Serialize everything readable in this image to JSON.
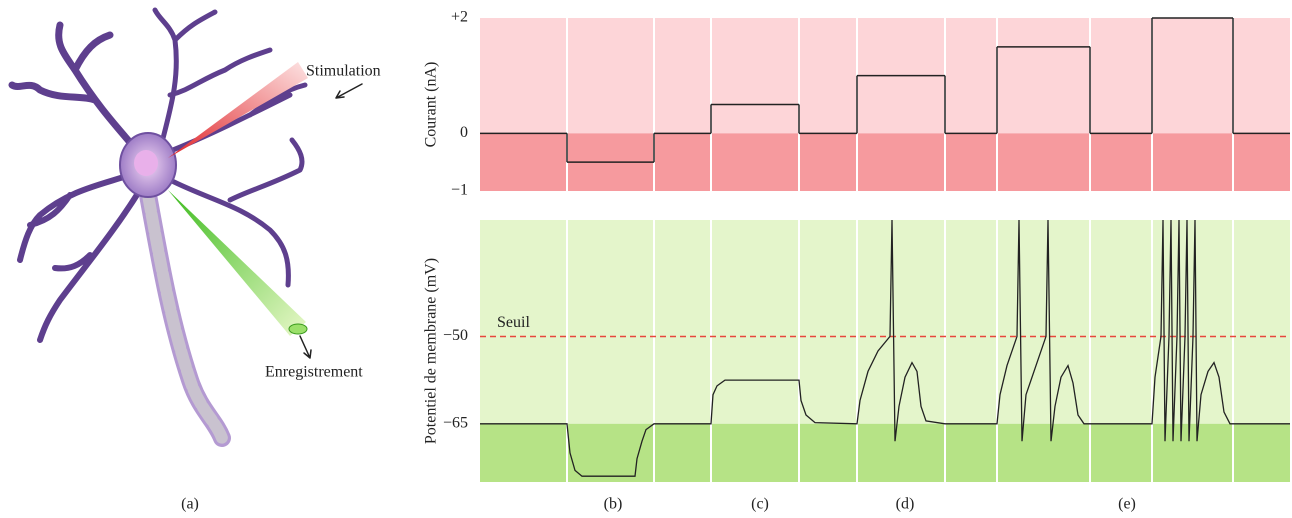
{
  "chart_data": [
    {
      "type": "step",
      "y_label": "Courant (nA)",
      "x": [
        0,
        87,
        174,
        231,
        319,
        377,
        465,
        517,
        610,
        672,
        753,
        810
      ],
      "values": [
        0,
        -0.5,
        0,
        0.5,
        0,
        1,
        0,
        1.5,
        0,
        2,
        0,
        0
      ],
      "xlim": [
        0,
        810
      ],
      "ylim": [
        -1,
        2
      ],
      "yticks": [
        {
          "value": 2,
          "label": "+2"
        },
        0,
        {
          "value": -1,
          "label": "−1"
        }
      ],
      "color": "#222222",
      "background_colors": [
        "#fdd5d8",
        "#f69a9e"
      ]
    },
    {
      "type": "line",
      "y_label": "Potentiel de membrane (mV)",
      "x": [
        0,
        87,
        90,
        95,
        102,
        155,
        157,
        162,
        166,
        174,
        231,
        233,
        237,
        245,
        319,
        321,
        326,
        335,
        377,
        380,
        388,
        398,
        410,
        412,
        415,
        419,
        425,
        432,
        437,
        441,
        446,
        465,
        517,
        520,
        527,
        537,
        539,
        542,
        546,
        556,
        566,
        568,
        571,
        575,
        581,
        588,
        593,
        598,
        604,
        672,
        675,
        681,
        683,
        685,
        689,
        691,
        693,
        697,
        699,
        701,
        705,
        707,
        709,
        713,
        715,
        717,
        721,
        728,
        734,
        739,
        744,
        750,
        810
      ],
      "values": [
        -65,
        -65,
        -70,
        -73,
        -74,
        -74,
        -71,
        -68,
        -66,
        -65,
        -65,
        -60,
        -58.5,
        -57.5,
        -57.5,
        -61,
        -63.5,
        -64.8,
        -65,
        -61,
        -56,
        -52.5,
        -50,
        -30,
        -68,
        -62,
        -57,
        -54.5,
        -56,
        -62,
        -64.5,
        -65,
        -65,
        -60,
        -55,
        -50,
        -30,
        -68,
        -60,
        -55,
        -50,
        -30,
        -68,
        -62,
        -57,
        -55,
        -58,
        -63.5,
        -65,
        -65,
        -57,
        -50,
        -30,
        -68,
        -50,
        -30,
        -68,
        -50,
        -30,
        -68,
        -50,
        -30,
        -68,
        -50,
        -30,
        -68,
        -60,
        -56,
        -54.5,
        -57,
        -63,
        -65,
        -65
      ],
      "xlim": [
        0,
        810
      ],
      "ylim": [
        -75,
        -30
      ],
      "yticks": [
        {
          "value": -50,
          "label": "−50"
        },
        {
          "value": -65,
          "label": "−65"
        }
      ],
      "threshold": {
        "value": -50,
        "label": "Seuil",
        "color": "#e8473c"
      },
      "color": "#222222",
      "background_colors": [
        "#e4f5cb",
        "#b6e386"
      ]
    }
  ],
  "illustration": {
    "stimulation": "Stimulation",
    "recording": "Enregistrement"
  },
  "panel_labels": [
    "(a)",
    "(b)",
    "(c)",
    "(d)",
    "(e)"
  ]
}
